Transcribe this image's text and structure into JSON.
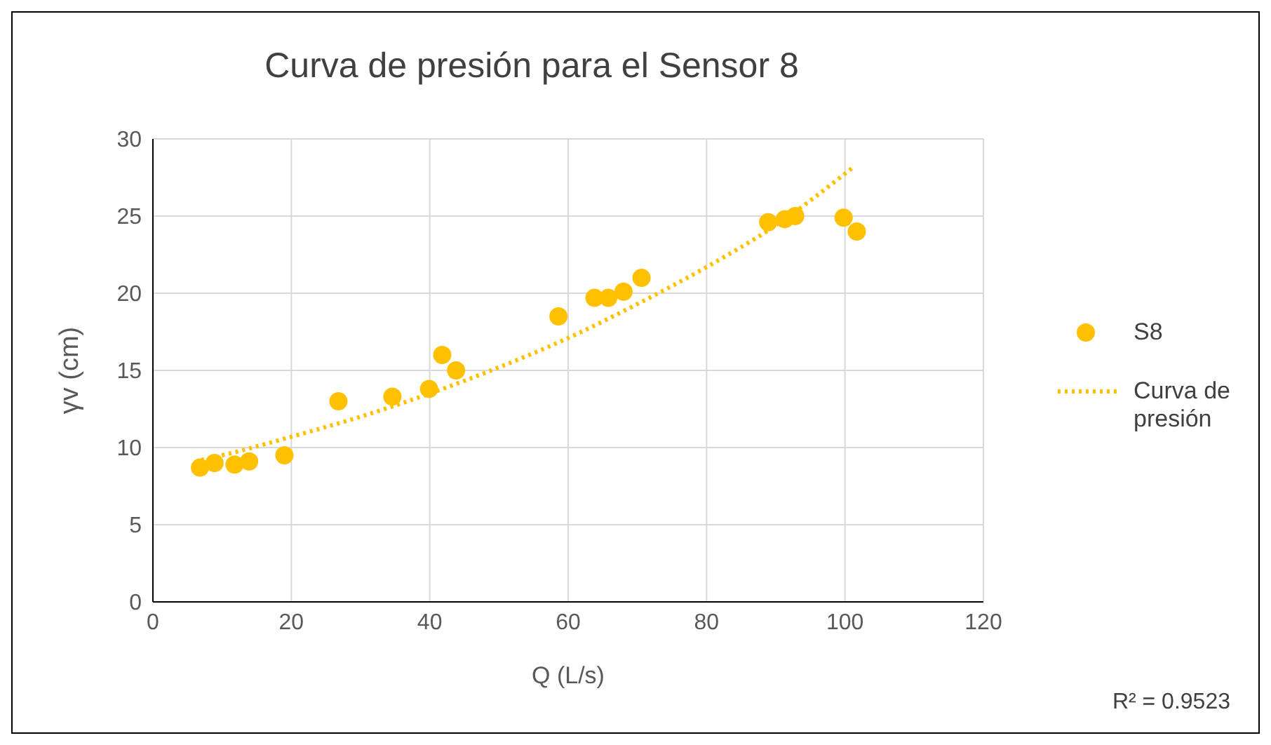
{
  "chart_data": {
    "type": "scatter",
    "title": "Curva de presión para el Sensor 8",
    "xlabel": "Q (L/s)",
    "ylabel": "γv (cm)",
    "xlim": [
      0,
      120
    ],
    "xticks": [
      0,
      20,
      40,
      60,
      80,
      100,
      120
    ],
    "ylim": [
      0,
      30
    ],
    "yticks": [
      0,
      5,
      10,
      15,
      20,
      25,
      30
    ],
    "grid": true,
    "legend": "right",
    "annotations": [
      "R² = 0.9523"
    ],
    "series": [
      {
        "name": "S8",
        "marker": "circle",
        "color": "#ffc000",
        "x": [
          6.8,
          8.9,
          11.8,
          13.9,
          19,
          26.8,
          34.6,
          39.9,
          41.8,
          43.8,
          58.6,
          63.8,
          65.8,
          68,
          70.6,
          88.9,
          91.3,
          92.8,
          99.8,
          101.7
        ],
        "values": [
          8.7,
          9.0,
          8.9,
          9.1,
          9.5,
          13.0,
          13.3,
          13.8,
          16.0,
          15.0,
          18.5,
          19.7,
          19.7,
          20.1,
          21.0,
          24.6,
          24.8,
          25.0,
          24.9,
          24.0
        ]
      },
      {
        "name": "Curva de presión",
        "type": "line",
        "line_style": "dotted",
        "color": "#ffc000",
        "x": [
          7,
          10,
          20,
          30,
          40,
          50,
          60,
          70,
          80,
          90,
          101
        ],
        "values": [
          9.2,
          9.5,
          10.7,
          12.0,
          13.5,
          15.2,
          17.1,
          19.3,
          21.7,
          24.4,
          28.1
        ]
      }
    ]
  }
}
